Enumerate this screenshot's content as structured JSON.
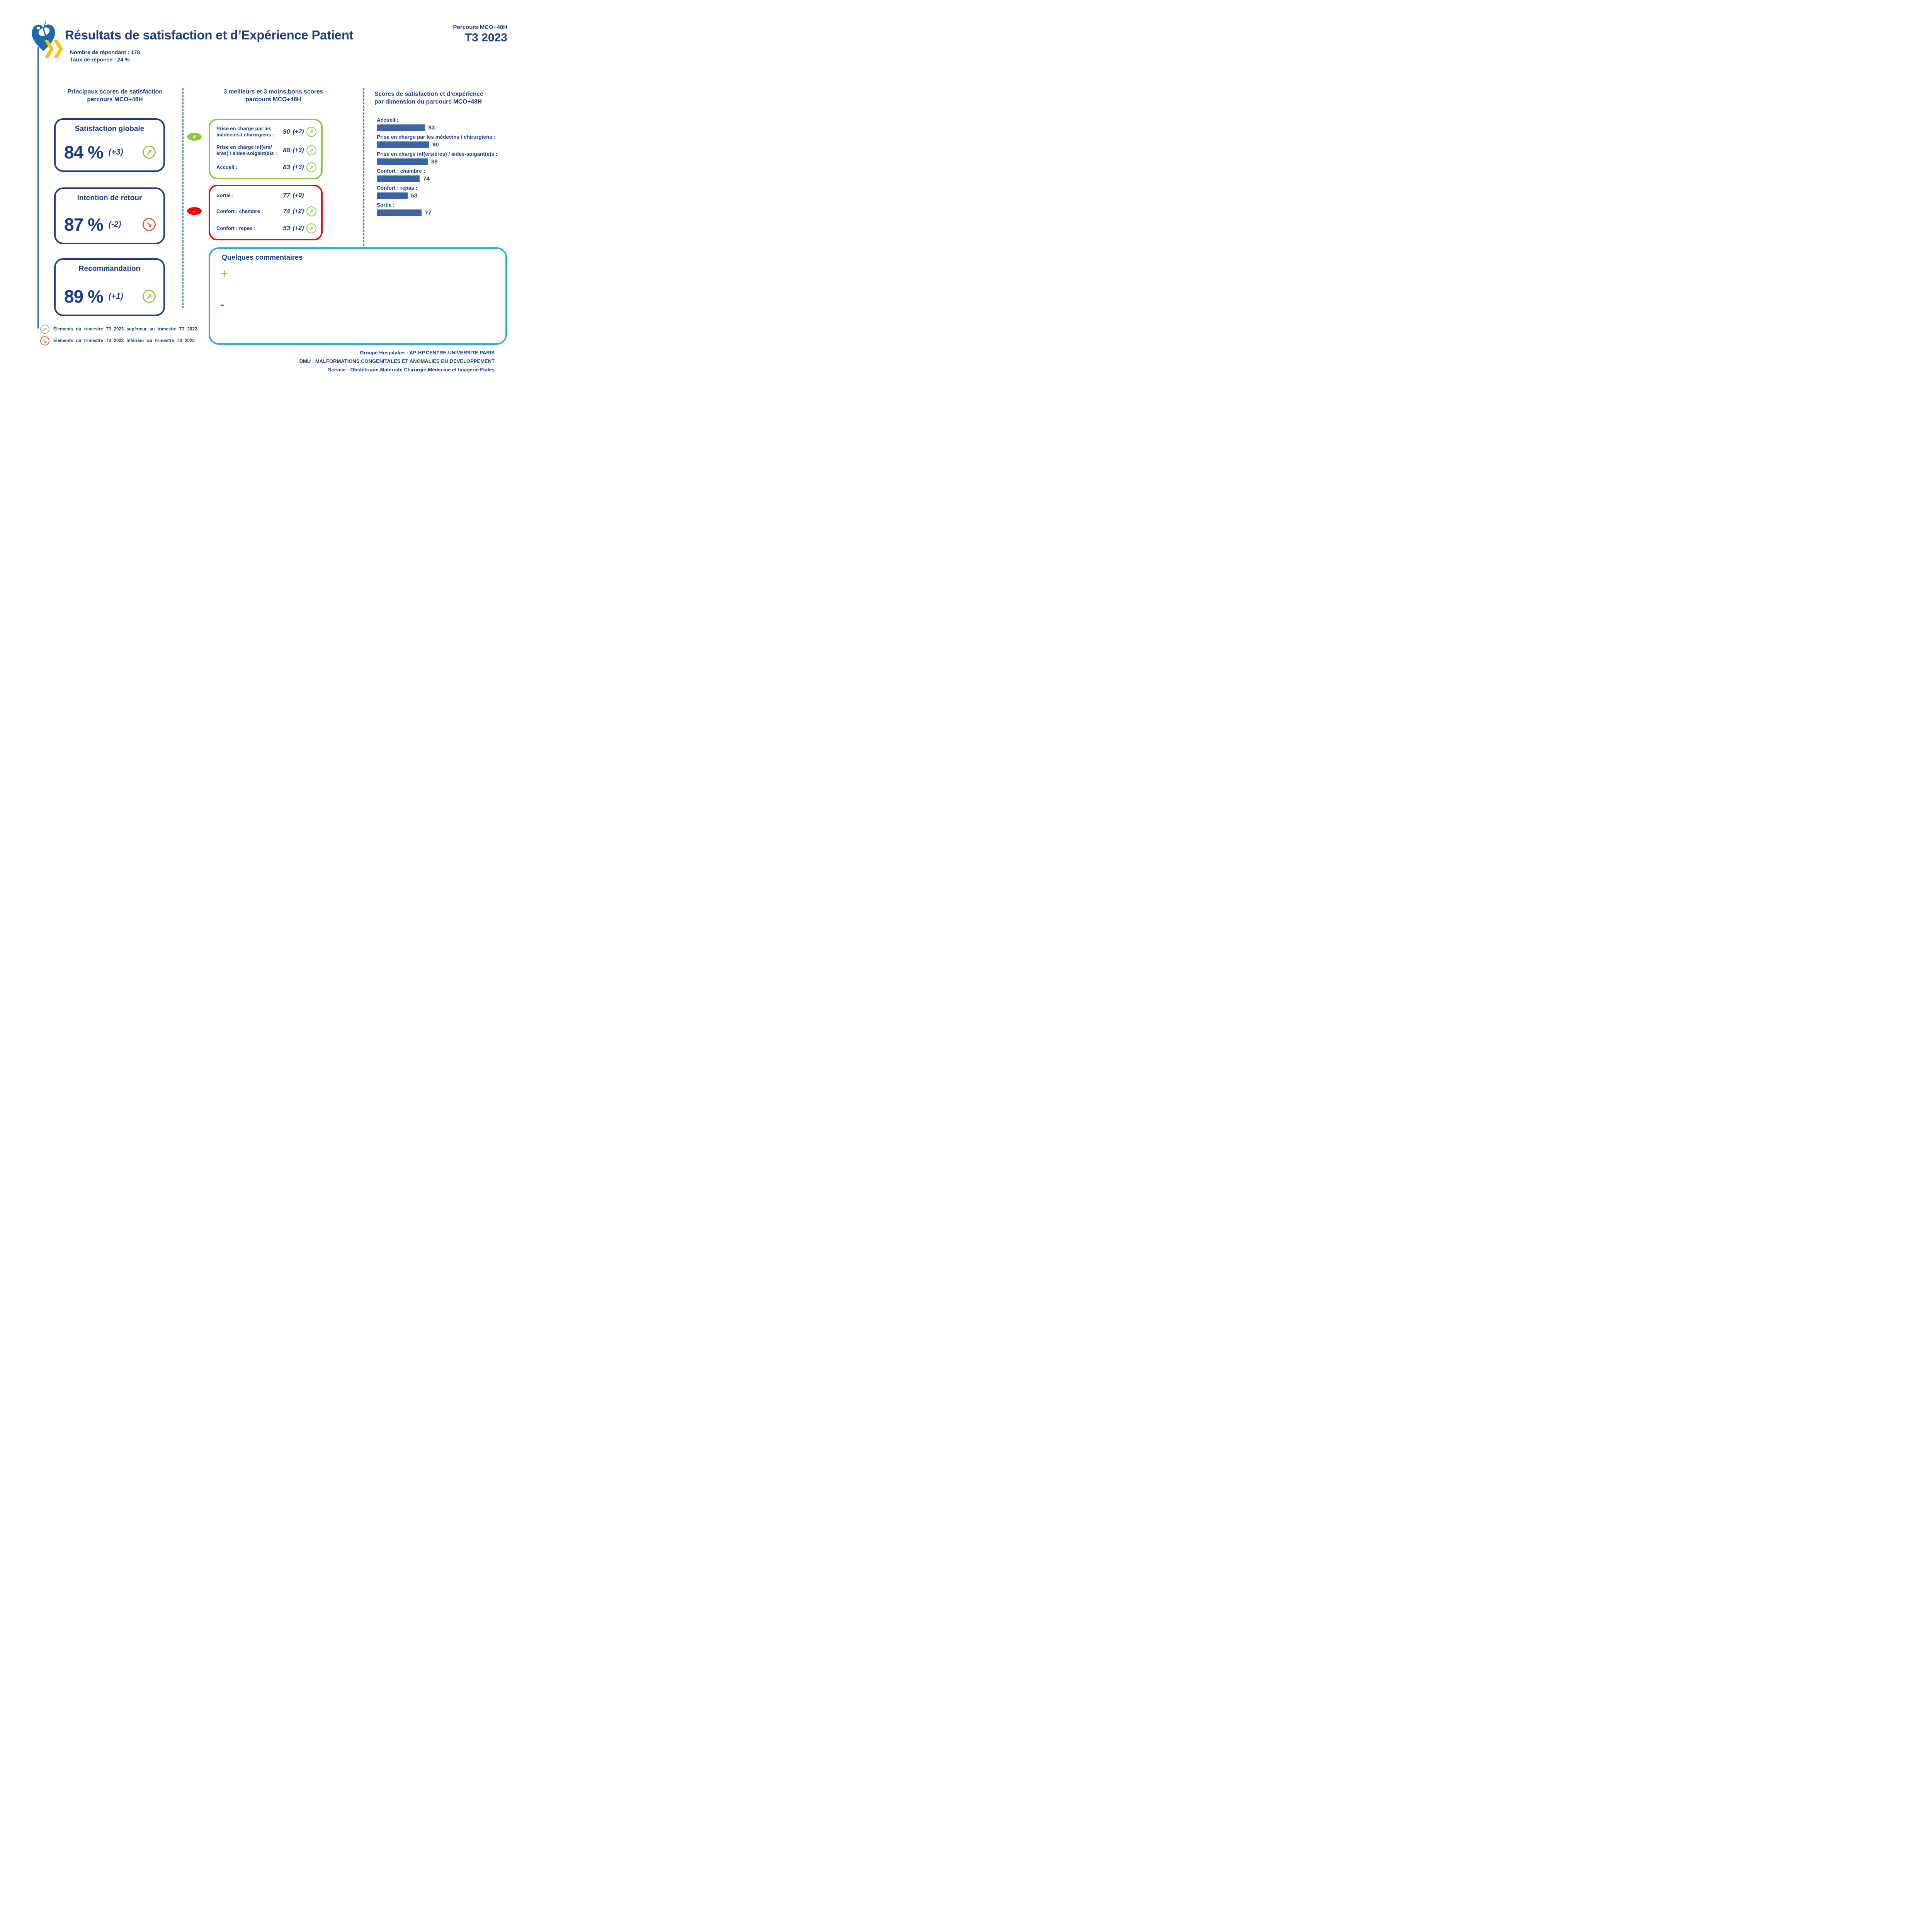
{
  "header": {
    "title": "Résultats de satisfaction et d’Expérience Patient",
    "parcours_label": "Parcours MCO+48H",
    "period": "T3 2023",
    "respondents": "Nombre de répondant : 178",
    "response_rate": "Taux de réponse : 24 %"
  },
  "icons": {
    "trend_up": "↗",
    "trend_down": "↘",
    "plus": "+",
    "minus": "-"
  },
  "colors": {
    "navy": "#1b3c87",
    "bar_blue": "#3c64a4",
    "green": "#8dc63f",
    "red": "#ff0000",
    "salmon_red": "#d9534f",
    "cyan": "#29abe2",
    "yellow": "#f5c400",
    "logo_blue": "#1a6ab4"
  },
  "left_column": {
    "title_line1": "Principaux scores de satisfaction",
    "title_line2": "parcours MCO+48H",
    "cards": [
      {
        "title": "Satisfaction globale",
        "value": "84 %",
        "delta": "(+3)",
        "trend": "up"
      },
      {
        "title": "Intention de retour",
        "value": "87 %",
        "delta": "(-2)",
        "trend": "down"
      },
      {
        "title": "Recommandation",
        "value": "89 %",
        "delta": "(+1)",
        "trend": "up"
      }
    ]
  },
  "middle_column": {
    "title_line1": "3 meilleurs et 3 moins bons scores",
    "title_line2": "parcours MCO+48H",
    "best": [
      {
        "label": "Prise en charge par les médecins / chirurgiens :",
        "value": "90",
        "delta": "(+2)",
        "trend": "up"
      },
      {
        "label": "Prise en charge inf(ers/ères) / aides-soigant(e)s :",
        "value": "88",
        "delta": "(+3)",
        "trend": "up"
      },
      {
        "label": "Accueil :",
        "value": "83",
        "delta": "(+3)",
        "trend": "up"
      }
    ],
    "worst": [
      {
        "label": "Sortie :",
        "value": "77",
        "delta": "(+0)",
        "trend": "none"
      },
      {
        "label": "Confort : chambre :",
        "value": "74",
        "delta": "(+2)",
        "trend": "up"
      },
      {
        "label": "Confort : repas :",
        "value": "53",
        "delta": "(+2)",
        "trend": "up"
      }
    ]
  },
  "right_column": {
    "title_line1": "Scores de satisfaction et d’expérience",
    "title_line2": "par dimension du parcours MCO+48H",
    "items": [
      {
        "label": "Accueil :",
        "value": 83
      },
      {
        "label": "Prise en charge par les médecins / chirurgiens :",
        "value": 90
      },
      {
        "label": "Prise en charge inf(ers/ères) / aides-soigant(e)s :",
        "value": 88
      },
      {
        "label": "Confort : chambre :",
        "value": 74
      },
      {
        "label": "Confort : repas :",
        "value": 53
      },
      {
        "label": "Sortie :",
        "value": 77
      }
    ]
  },
  "chart_data": {
    "type": "bar",
    "orientation": "horizontal",
    "title": "Scores de satisfaction et d’expérience par dimension du parcours MCO+48H",
    "categories": [
      "Accueil",
      "Prise en charge par les médecins / chirurgiens",
      "Prise en charge inf(ers/ères) / aides-soigant(e)s",
      "Confort : chambre",
      "Confort : repas",
      "Sortie"
    ],
    "values": [
      83,
      90,
      88,
      74,
      53,
      77
    ],
    "xlim": [
      0,
      100
    ],
    "bar_color": "#3c64a4"
  },
  "comments": {
    "title": "Quelques commentaires"
  },
  "legend": [
    {
      "trend": "up",
      "text": "Elements du trimestre T3 2023 supérieur au trimestre T3 2022"
    },
    {
      "trend": "down",
      "text": "Elements du trimestre T3 2023 inférieur au trimestre T3 2022"
    }
  ],
  "footer": {
    "lines": [
      "Groupe Hospitalier : AP-HP.CENTRE-UNIVERSITE PARIS",
      "DMU : MALFORMATIONS CONGENITALES ET ANOMALIES DU DEVELOPPEMENT",
      "Service : Obstétrique-Maternité Chirurgie-Médecine et Imagerie Ftales"
    ]
  }
}
